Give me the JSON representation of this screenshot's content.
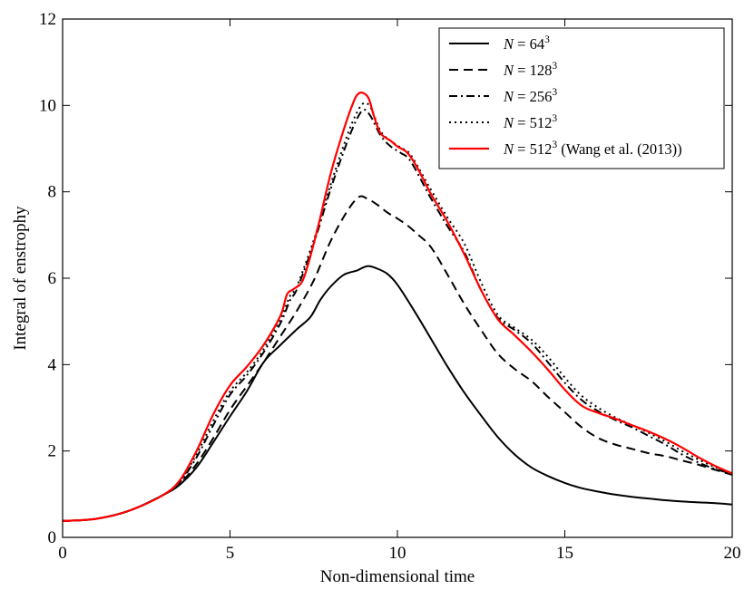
{
  "chart_data": {
    "type": "line",
    "title": "",
    "xlabel": "Non-dimensional time",
    "ylabel": "Integral of enstrophy",
    "xlim": [
      0,
      20
    ],
    "ylim": [
      0,
      12
    ],
    "xticks": [
      0,
      5,
      10,
      15,
      20
    ],
    "yticks": [
      0,
      2,
      4,
      6,
      8,
      10,
      12
    ],
    "grid": false,
    "legend_position": "top-right",
    "series": [
      {
        "name": "N = 64^3",
        "legend_main": "N = 64",
        "legend_sup": "3",
        "legend_suffix": "",
        "color": "#000000",
        "style": "solid",
        "x": [
          0,
          1,
          2,
          3,
          3.5,
          4,
          4.5,
          5,
          5.5,
          6,
          6.5,
          7,
          7.4,
          7.7,
          8,
          8.4,
          8.8,
          9.1,
          9.4,
          9.7,
          10,
          10.5,
          11,
          11.5,
          12,
          12.5,
          13,
          13.5,
          14,
          14.5,
          15,
          15.5,
          16,
          16.5,
          17,
          17.5,
          18,
          18.5,
          19,
          19.5,
          20
        ],
        "y": [
          0.38,
          0.43,
          0.62,
          0.98,
          1.22,
          1.62,
          2.2,
          2.8,
          3.38,
          4.05,
          4.45,
          4.82,
          5.1,
          5.5,
          5.8,
          6.08,
          6.18,
          6.28,
          6.22,
          6.1,
          5.85,
          5.25,
          4.6,
          3.95,
          3.35,
          2.82,
          2.32,
          1.92,
          1.62,
          1.42,
          1.26,
          1.14,
          1.06,
          0.99,
          0.94,
          0.9,
          0.86,
          0.83,
          0.81,
          0.79,
          0.76
        ]
      },
      {
        "name": "N = 128^3",
        "legend_main": "N = 128",
        "legend_sup": "3",
        "legend_suffix": "",
        "color": "#000000",
        "style": "dashed",
        "x": [
          0,
          1,
          2,
          3,
          3.5,
          4,
          4.5,
          5,
          5.5,
          6,
          6.5,
          7,
          7.5,
          8,
          8.5,
          8.85,
          9.1,
          9.4,
          9.7,
          10,
          10.3,
          10.6,
          11,
          11.5,
          12,
          12.5,
          13,
          13.5,
          14,
          14.5,
          15,
          15.5,
          16,
          16.5,
          17,
          17.5,
          18,
          18.5,
          19,
          19.5,
          20
        ],
        "y": [
          0.38,
          0.43,
          0.62,
          0.98,
          1.24,
          1.7,
          2.3,
          2.95,
          3.5,
          4.05,
          4.65,
          5.25,
          5.95,
          6.85,
          7.55,
          7.88,
          7.84,
          7.7,
          7.52,
          7.38,
          7.22,
          7.02,
          6.72,
          6.08,
          5.4,
          4.8,
          4.25,
          3.9,
          3.62,
          3.25,
          2.9,
          2.55,
          2.3,
          2.15,
          2.05,
          1.95,
          1.88,
          1.78,
          1.68,
          1.56,
          1.45
        ]
      },
      {
        "name": "N = 256^3",
        "legend_main": "N = 256",
        "legend_sup": "3",
        "legend_suffix": "",
        "color": "#000000",
        "style": "dashdot",
        "x": [
          0,
          1,
          2,
          3,
          3.5,
          4,
          4.5,
          5,
          5.5,
          6,
          6.5,
          6.8,
          7,
          7.5,
          8,
          8.5,
          8.8,
          9,
          9.2,
          9.5,
          9.8,
          10.1,
          10.4,
          11,
          11.5,
          12,
          12.5,
          13,
          13.5,
          14,
          14.5,
          15,
          15.5,
          16,
          16.5,
          17,
          17.5,
          18,
          18.5,
          19,
          19.5,
          20
        ],
        "y": [
          0.38,
          0.43,
          0.62,
          0.98,
          1.28,
          1.85,
          2.6,
          3.3,
          3.75,
          4.28,
          4.95,
          5.5,
          5.75,
          6.8,
          8.05,
          9.15,
          9.7,
          9.9,
          9.75,
          9.3,
          9.05,
          8.9,
          8.7,
          7.85,
          7.2,
          6.6,
          5.72,
          5.08,
          4.8,
          4.5,
          4.05,
          3.58,
          3.18,
          2.92,
          2.72,
          2.55,
          2.35,
          2.15,
          1.92,
          1.73,
          1.58,
          1.48
        ]
      },
      {
        "name": "N = 512^3",
        "legend_main": "N = 512",
        "legend_sup": "3",
        "legend_suffix": "",
        "color": "#000000",
        "style": "dotted",
        "x": [
          0,
          1,
          2,
          3,
          3.5,
          4,
          4.5,
          5,
          5.5,
          6,
          6.5,
          6.8,
          7,
          7.5,
          8,
          8.5,
          8.8,
          9,
          9.2,
          9.5,
          9.8,
          10.1,
          10.4,
          11,
          11.5,
          12,
          12.5,
          13,
          13.5,
          14,
          14.5,
          15,
          15.5,
          16,
          16.5,
          17,
          17.5,
          18,
          18.5,
          19,
          19.5,
          20
        ],
        "y": [
          0.38,
          0.43,
          0.62,
          0.98,
          1.3,
          1.92,
          2.7,
          3.38,
          3.82,
          4.35,
          5.05,
          5.6,
          5.82,
          6.88,
          8.15,
          9.3,
          9.85,
          10.05,
          9.95,
          9.4,
          9.18,
          9.02,
          8.85,
          8.05,
          7.4,
          6.8,
          5.9,
          5.15,
          4.85,
          4.58,
          4.18,
          3.7,
          3.28,
          3.0,
          2.78,
          2.6,
          2.42,
          2.22,
          2.0,
          1.8,
          1.62,
          1.46
        ]
      },
      {
        "name": "N = 512^3 (Wang et al. (2013))",
        "legend_main": "N = 512",
        "legend_sup": "3",
        "legend_suffix": " (Wang et al. (2013))",
        "color": "#ff0000",
        "style": "solid",
        "x": [
          0,
          1,
          2,
          3,
          3.5,
          4,
          4.5,
          5,
          5.5,
          6,
          6.5,
          6.7,
          6.9,
          7.2,
          7.6,
          8,
          8.4,
          8.7,
          8.85,
          9,
          9.15,
          9.3,
          9.5,
          9.8,
          10,
          10.3,
          10.6,
          11,
          11.5,
          12,
          12.5,
          13,
          13.5,
          14,
          14.5,
          15,
          15.5,
          16,
          16.5,
          17,
          17.5,
          18,
          18.5,
          19,
          19.5,
          20
        ],
        "y": [
          0.38,
          0.43,
          0.62,
          0.98,
          1.32,
          2.0,
          2.85,
          3.52,
          3.95,
          4.45,
          5.12,
          5.62,
          5.75,
          6.0,
          7.1,
          8.4,
          9.45,
          10.1,
          10.28,
          10.28,
          10.15,
          9.75,
          9.35,
          9.18,
          9.05,
          8.9,
          8.55,
          7.95,
          7.3,
          6.55,
          5.72,
          5.05,
          4.68,
          4.3,
          3.88,
          3.42,
          3.05,
          2.88,
          2.75,
          2.6,
          2.45,
          2.28,
          2.08,
          1.85,
          1.65,
          1.48
        ]
      }
    ]
  }
}
